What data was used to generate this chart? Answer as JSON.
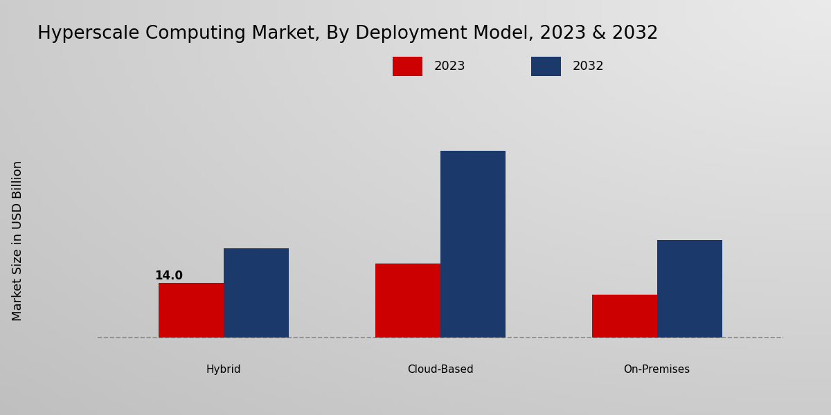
{
  "title": "Hyperscale Computing Market, By Deployment Model, 2023 & 2032",
  "ylabel": "Market Size in USD Billion",
  "categories": [
    "Hybrid",
    "Cloud-Based",
    "On-Premises"
  ],
  "values_2023": [
    14.0,
    19.0,
    11.0
  ],
  "values_2032": [
    23.0,
    48.0,
    25.0
  ],
  "bar_color_2023": "#cc0000",
  "bar_color_2032": "#1b3a6b",
  "legend_labels": [
    "2023",
    "2032"
  ],
  "annotation_label": "14.0",
  "background_color": "#d8d8d8",
  "bar_width": 0.3,
  "ylim": [
    -6,
    60
  ],
  "title_fontsize": 19,
  "axis_label_fontsize": 13,
  "tick_fontsize": 11,
  "legend_fontsize": 13,
  "red_bottom_color": "#cc0000"
}
